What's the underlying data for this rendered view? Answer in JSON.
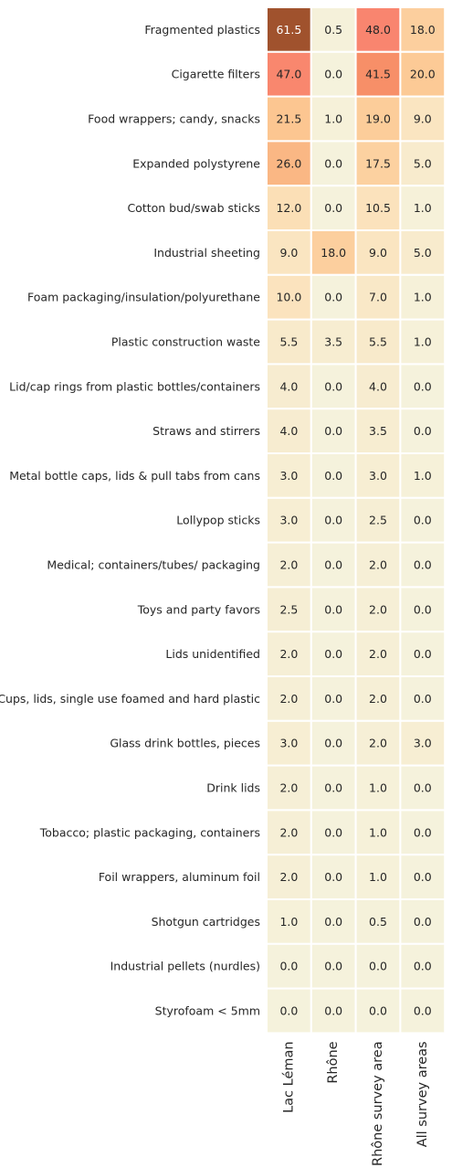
{
  "chart_data": {
    "type": "heatmap",
    "title": "",
    "xlabel": "",
    "ylabel": "",
    "columns": [
      "Lac Léman",
      "Rhône",
      "Rhône survey area",
      "All survey areas"
    ],
    "rows": [
      "Fragmented plastics",
      "Cigarette filters",
      "Food wrappers; candy, snacks",
      "Expanded polystyrene",
      "Cotton bud/swab sticks",
      "Industrial sheeting",
      "Foam packaging/insulation/polyurethane",
      "Plastic construction waste",
      "Lid/cap rings from plastic bottles/containers",
      "Straws and stirrers",
      "Metal bottle caps, lids & pull tabs from cans",
      "Lollypop sticks",
      "Medical; containers/tubes/ packaging",
      "Toys and party favors",
      "Lids unidentified",
      "Cups, lids, single use foamed and hard plastic",
      "Glass drink bottles, pieces",
      "Drink lids",
      "Tobacco; plastic packaging, containers",
      "Foil wrappers, aluminum foil",
      "Shotgun cartridges",
      "Industrial pellets (nurdles)",
      "Styrofoam < 5mm"
    ],
    "values": [
      [
        61.5,
        0.5,
        48.0,
        18.0
      ],
      [
        47.0,
        0.0,
        41.5,
        20.0
      ],
      [
        21.5,
        1.0,
        19.0,
        9.0
      ],
      [
        26.0,
        0.0,
        17.5,
        5.0
      ],
      [
        12.0,
        0.0,
        10.5,
        1.0
      ],
      [
        9.0,
        18.0,
        9.0,
        5.0
      ],
      [
        10.0,
        0.0,
        7.0,
        1.0
      ],
      [
        5.5,
        3.5,
        5.5,
        1.0
      ],
      [
        4.0,
        0.0,
        4.0,
        0.0
      ],
      [
        4.0,
        0.0,
        3.5,
        0.0
      ],
      [
        3.0,
        0.0,
        3.0,
        1.0
      ],
      [
        3.0,
        0.0,
        2.5,
        0.0
      ],
      [
        2.0,
        0.0,
        2.0,
        0.0
      ],
      [
        2.5,
        0.0,
        2.0,
        0.0
      ],
      [
        2.0,
        0.0,
        2.0,
        0.0
      ],
      [
        2.0,
        0.0,
        2.0,
        0.0
      ],
      [
        3.0,
        0.0,
        2.0,
        3.0
      ],
      [
        2.0,
        0.0,
        1.0,
        0.0
      ],
      [
        2.0,
        0.0,
        1.0,
        0.0
      ],
      [
        2.0,
        0.0,
        1.0,
        0.0
      ],
      [
        1.0,
        0.0,
        0.5,
        0.0
      ],
      [
        0.0,
        0.0,
        0.0,
        0.0
      ],
      [
        0.0,
        0.0,
        0.0,
        0.0
      ]
    ],
    "value_format": "0.0",
    "colormap": {
      "name": "sequential",
      "vmin": 0,
      "vmax": 61.5,
      "stops": [
        "#F5F2DC",
        "#FBE3BD",
        "#FCC994",
        "#F9A777",
        "#F79068",
        "#FA8072",
        "#A0522D"
      ]
    },
    "colorbar": false,
    "legend": "none",
    "grid": false,
    "cell_border_color": "#FFFFFF",
    "text_color_dark": "#262626",
    "text_color_light": "#FFFFFF"
  }
}
